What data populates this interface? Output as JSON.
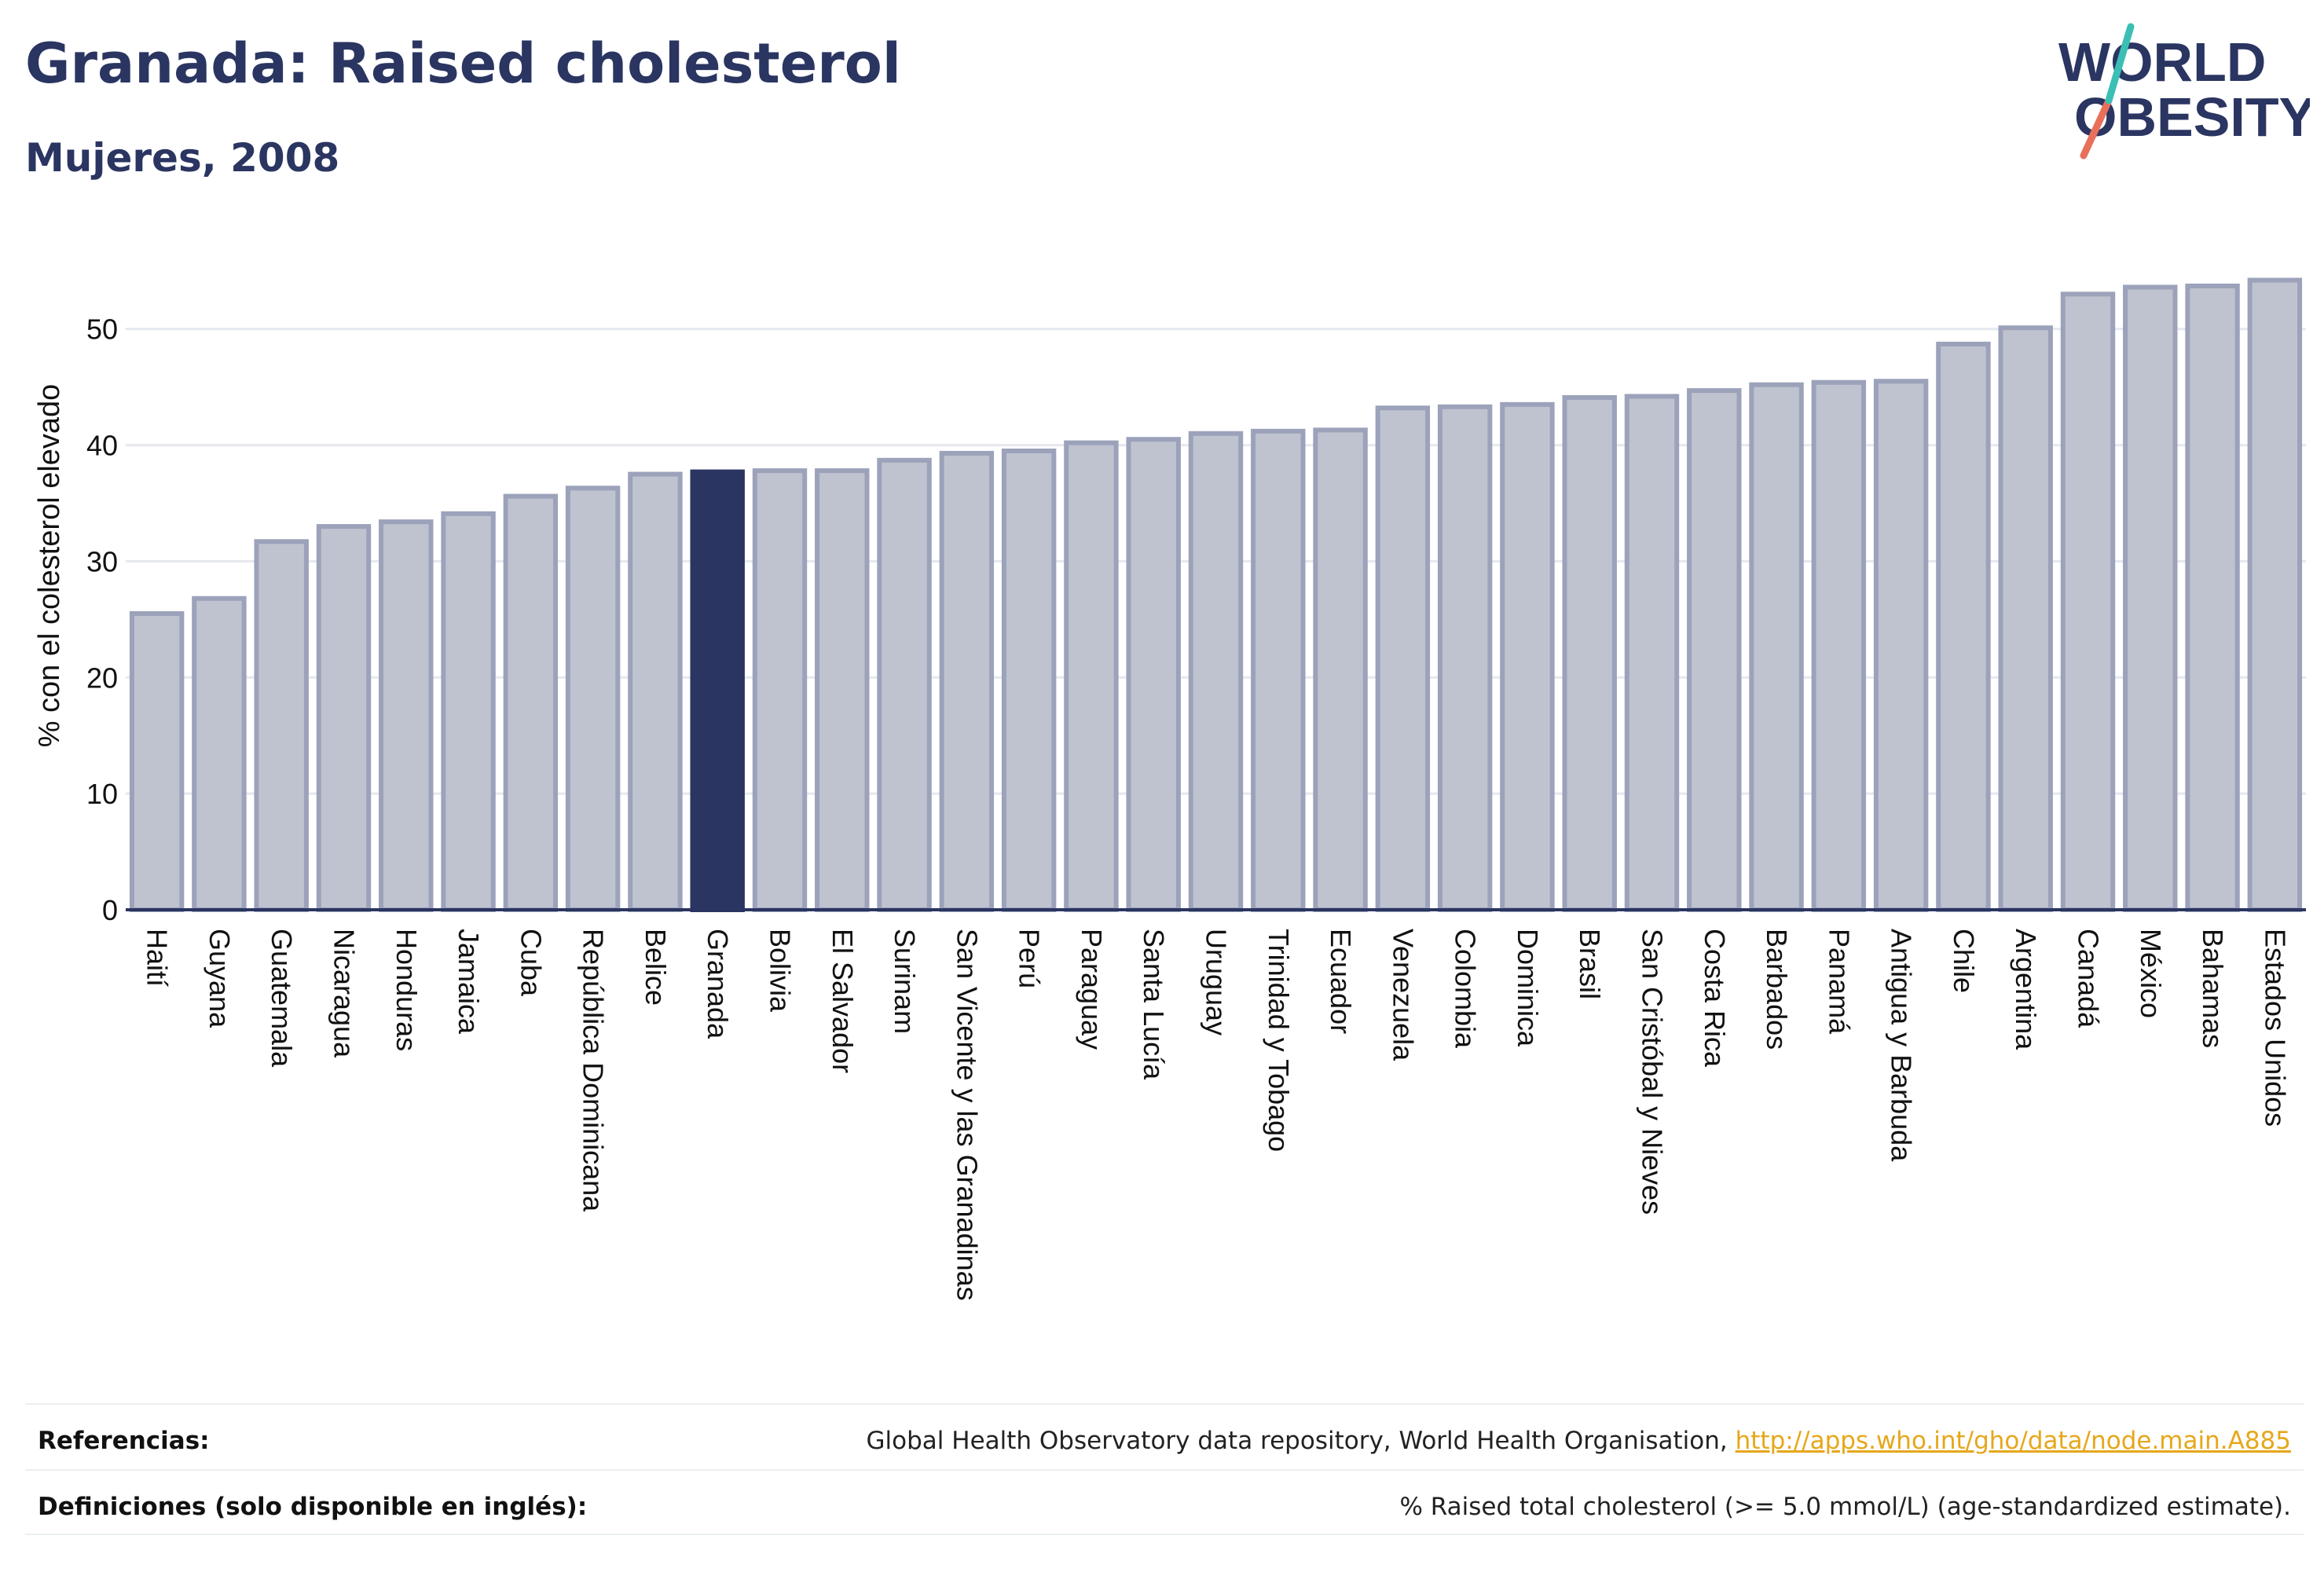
{
  "header": {
    "title": "Granada: Raised cholesterol",
    "subtitle": "Mujeres, 2008"
  },
  "logo": {
    "line1": "WORLD",
    "line2": "OBESITY"
  },
  "colors": {
    "title": "#2a3561",
    "bar_fill": "#bfc3d0",
    "bar_stroke": "#9ba2ba",
    "highlight": "#2a3561",
    "grid": "#e6e8ef",
    "link": "#e6a71b",
    "logo_teal": "#3bbfb5",
    "logo_coral": "#e8705a"
  },
  "chart_data": {
    "type": "bar",
    "ylabel": "% con el colesterol elevado",
    "ylim": [
      0,
      56
    ],
    "yticks": [
      0,
      10,
      20,
      30,
      40,
      50
    ],
    "grid": true,
    "highlight": "Granada",
    "categories": [
      "Haití",
      "Guyana",
      "Guatemala",
      "Nicaragua",
      "Honduras",
      "Jamaica",
      "Cuba",
      "República Dominicana",
      "Belice",
      "Granada",
      "Bolivia",
      "El Salvador",
      "Surinam",
      "San Vicente y las Granadinas",
      "Perú",
      "Paraguay",
      "Santa Lucía",
      "Uruguay",
      "Trinidad y Tobago",
      "Ecuador",
      "Venezuela",
      "Colombia",
      "Dominica",
      "Brasil",
      "San Cristóbal y Nieves",
      "Costa Rica",
      "Barbados",
      "Panamá",
      "Antigua y Barbuda",
      "Chile",
      "Argentina",
      "Canadá",
      "México",
      "Bahamas",
      "Estados Unidos"
    ],
    "values": [
      25.5,
      26.8,
      31.7,
      33.0,
      33.4,
      34.1,
      35.6,
      36.3,
      37.5,
      37.7,
      37.8,
      37.8,
      38.7,
      39.3,
      39.5,
      40.2,
      40.5,
      41.0,
      41.2,
      41.3,
      43.2,
      43.3,
      43.5,
      44.1,
      44.2,
      44.7,
      45.2,
      45.4,
      45.5,
      48.7,
      50.1,
      53.0,
      53.6,
      53.7,
      54.2
    ]
  },
  "footer": {
    "references_label": "Referencias:",
    "references_text": "Global Health Observatory data repository, World Health Organisation, ",
    "references_link": "http://apps.who.int/gho/data/node.main.A885",
    "definitions_label": "Definiciones (solo disponible en inglés):",
    "definitions_text": "% Raised total cholesterol (>= 5.0 mmol/L) (age-standardized estimate)."
  }
}
